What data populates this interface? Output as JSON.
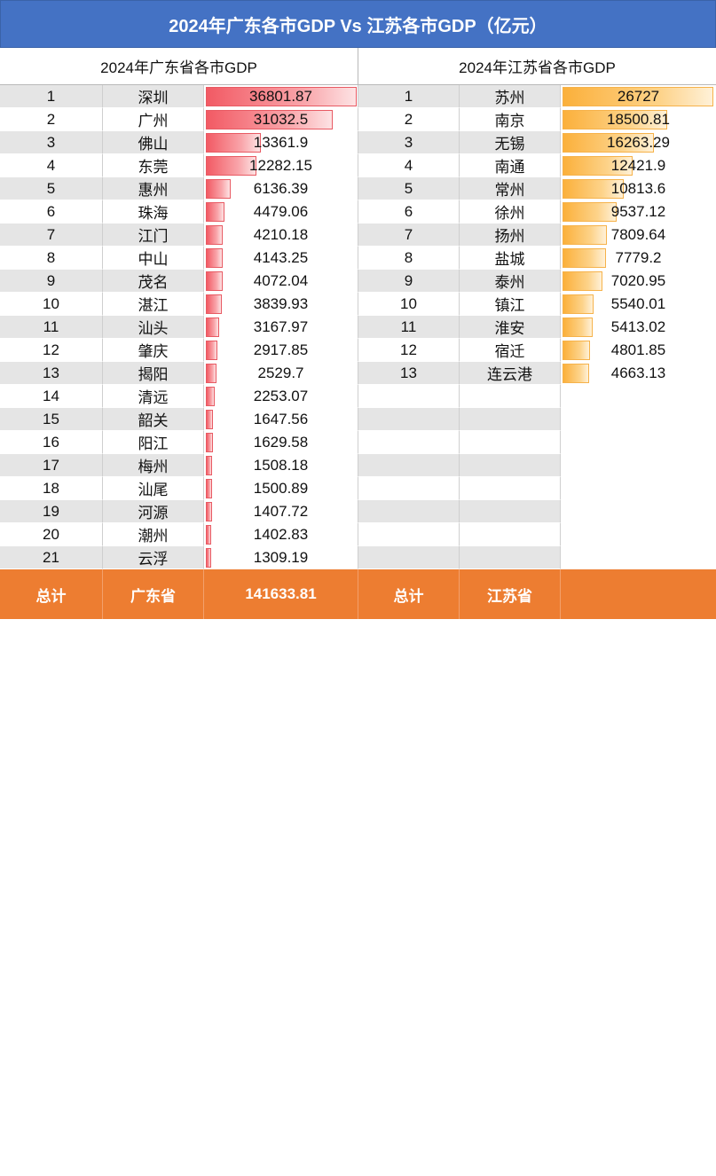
{
  "title": "2024年广东各市GDP Vs 江苏各市GDP（亿元）",
  "subtitles": {
    "left": "2024年广东省各市GDP",
    "right": "2024年江苏省各市GDP"
  },
  "colors": {
    "title_bg": "#4472c4",
    "footer_bg": "#ed7d31",
    "gd_bar": "#f25a64",
    "js_bar": "#fbb03b",
    "row_gray": "#e5e5e5"
  },
  "chart_data": [
    {
      "type": "table",
      "title": "2024年广东省各市GDP",
      "columns": [
        "rank",
        "city",
        "gdp"
      ],
      "rows": [
        {
          "rank": "1",
          "city": "深圳",
          "gdp": "36801.87"
        },
        {
          "rank": "2",
          "city": "广州",
          "gdp": "31032.5"
        },
        {
          "rank": "3",
          "city": "佛山",
          "gdp": "13361.9"
        },
        {
          "rank": "4",
          "city": "东莞",
          "gdp": "12282.15"
        },
        {
          "rank": "5",
          "city": "惠州",
          "gdp": "6136.39"
        },
        {
          "rank": "6",
          "city": "珠海",
          "gdp": "4479.06"
        },
        {
          "rank": "7",
          "city": "江门",
          "gdp": "4210.18"
        },
        {
          "rank": "8",
          "city": "中山",
          "gdp": "4143.25"
        },
        {
          "rank": "9",
          "city": "茂名",
          "gdp": "4072.04"
        },
        {
          "rank": "10",
          "city": "湛江",
          "gdp": "3839.93"
        },
        {
          "rank": "11",
          "city": "汕头",
          "gdp": "3167.97"
        },
        {
          "rank": "12",
          "city": "肇庆",
          "gdp": "2917.85"
        },
        {
          "rank": "13",
          "city": "揭阳",
          "gdp": "2529.7"
        },
        {
          "rank": "14",
          "city": "清远",
          "gdp": "2253.07"
        },
        {
          "rank": "15",
          "city": "韶关",
          "gdp": "1647.56"
        },
        {
          "rank": "16",
          "city": "阳江",
          "gdp": "1629.58"
        },
        {
          "rank": "17",
          "city": "梅州",
          "gdp": "1508.18"
        },
        {
          "rank": "18",
          "city": "汕尾",
          "gdp": "1500.89"
        },
        {
          "rank": "19",
          "city": "河源",
          "gdp": "1407.72"
        },
        {
          "rank": "20",
          "city": "潮州",
          "gdp": "1402.83"
        },
        {
          "rank": "21",
          "city": "云浮",
          "gdp": "1309.19"
        }
      ],
      "total_label": "总计",
      "province": "广东省",
      "total": "141633.81"
    },
    {
      "type": "table",
      "title": "2024年江苏省各市GDP",
      "columns": [
        "rank",
        "city",
        "gdp"
      ],
      "rows": [
        {
          "rank": "1",
          "city": "苏州",
          "gdp": "26727"
        },
        {
          "rank": "2",
          "city": "南京",
          "gdp": "18500.81"
        },
        {
          "rank": "3",
          "city": "无锡",
          "gdp": "16263.29"
        },
        {
          "rank": "4",
          "city": "南通",
          "gdp": "12421.9"
        },
        {
          "rank": "5",
          "city": "常州",
          "gdp": "10813.6"
        },
        {
          "rank": "6",
          "city": "徐州",
          "gdp": "9537.12"
        },
        {
          "rank": "7",
          "city": "扬州",
          "gdp": "7809.64"
        },
        {
          "rank": "8",
          "city": "盐城",
          "gdp": "7779.2"
        },
        {
          "rank": "9",
          "city": "泰州",
          "gdp": "7020.95"
        },
        {
          "rank": "10",
          "city": "镇江",
          "gdp": "5540.01"
        },
        {
          "rank": "11",
          "city": "淮安",
          "gdp": "5413.02"
        },
        {
          "rank": "12",
          "city": "宿迁",
          "gdp": "4801.85"
        },
        {
          "rank": "13",
          "city": "连云港",
          "gdp": "4663.13"
        }
      ],
      "total_label": "总计",
      "province": "江苏省"
    }
  ]
}
